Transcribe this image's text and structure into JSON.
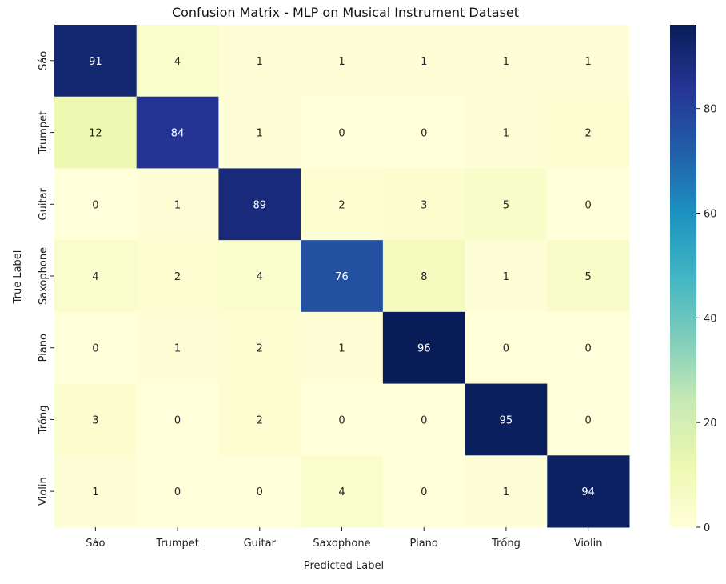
{
  "chart_data": {
    "type": "heatmap",
    "title": "Confusion Matrix - MLP on Musical Instrument Dataset",
    "xlabel": "Predicted Label",
    "ylabel": "True Label",
    "x_categories": [
      "Sáo",
      "Trumpet",
      "Guitar",
      "Saxophone",
      "Piano",
      "Trống",
      "Violin"
    ],
    "y_categories": [
      "Sáo",
      "Trumpet",
      "Guitar",
      "Saxophone",
      "Piano",
      "Trống",
      "Violin"
    ],
    "values": [
      [
        91,
        4,
        1,
        1,
        1,
        1,
        1
      ],
      [
        12,
        84,
        1,
        0,
        0,
        1,
        2
      ],
      [
        0,
        1,
        89,
        2,
        3,
        5,
        0
      ],
      [
        4,
        2,
        4,
        76,
        8,
        1,
        5
      ],
      [
        0,
        1,
        2,
        1,
        96,
        0,
        0
      ],
      [
        3,
        0,
        2,
        0,
        0,
        95,
        0
      ],
      [
        1,
        0,
        0,
        4,
        0,
        1,
        94
      ]
    ],
    "colormap": "YlGnBu",
    "color_range": [
      0,
      96
    ],
    "colorbar_ticks": [
      0,
      20,
      40,
      60,
      80
    ]
  }
}
